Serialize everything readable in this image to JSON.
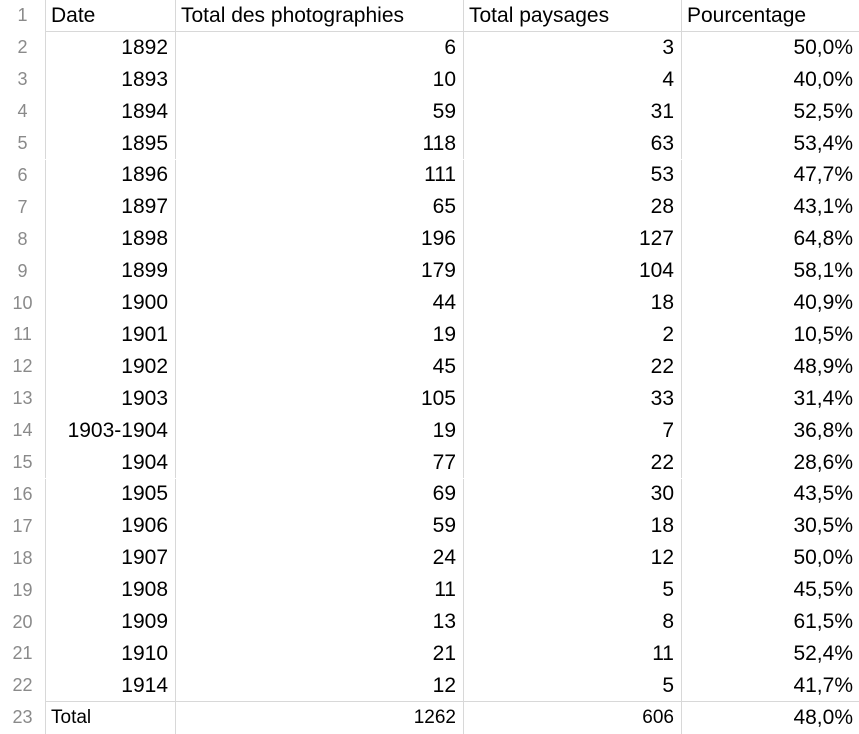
{
  "headers": {
    "date": "Date",
    "total": "Total des photographies",
    "paysages": "Total paysages",
    "pourcentage": "Pourcentage"
  },
  "rows": [
    {
      "n": "2",
      "date": "1892",
      "total": "6",
      "paysages": "3",
      "pct": "50,0%"
    },
    {
      "n": "3",
      "date": "1893",
      "total": "10",
      "paysages": "4",
      "pct": "40,0%"
    },
    {
      "n": "4",
      "date": "1894",
      "total": "59",
      "paysages": "31",
      "pct": "52,5%"
    },
    {
      "n": "5",
      "date": "1895",
      "total": "118",
      "paysages": "63",
      "pct": "53,4%"
    },
    {
      "n": "6",
      "date": "1896",
      "total": "111",
      "paysages": "53",
      "pct": "47,7%"
    },
    {
      "n": "7",
      "date": "1897",
      "total": "65",
      "paysages": "28",
      "pct": "43,1%"
    },
    {
      "n": "8",
      "date": "1898",
      "total": "196",
      "paysages": "127",
      "pct": "64,8%"
    },
    {
      "n": "9",
      "date": "1899",
      "total": "179",
      "paysages": "104",
      "pct": "58,1%"
    },
    {
      "n": "10",
      "date": "1900",
      "total": "44",
      "paysages": "18",
      "pct": "40,9%"
    },
    {
      "n": "11",
      "date": "1901",
      "total": "19",
      "paysages": "2",
      "pct": "10,5%"
    },
    {
      "n": "12",
      "date": "1902",
      "total": "45",
      "paysages": "22",
      "pct": "48,9%"
    },
    {
      "n": "13",
      "date": "1903",
      "total": "105",
      "paysages": "33",
      "pct": "31,4%"
    },
    {
      "n": "14",
      "date": "1903-1904",
      "total": "19",
      "paysages": "7",
      "pct": "36,8%"
    },
    {
      "n": "15",
      "date": "1904",
      "total": "77",
      "paysages": "22",
      "pct": "28,6%"
    },
    {
      "n": "16",
      "date": "1905",
      "total": "69",
      "paysages": "30",
      "pct": "43,5%"
    },
    {
      "n": "17",
      "date": "1906",
      "total": "59",
      "paysages": "18",
      "pct": "30,5%"
    },
    {
      "n": "18",
      "date": "1907",
      "total": "24",
      "paysages": "12",
      "pct": "50,0%"
    },
    {
      "n": "19",
      "date": "1908",
      "total": "11",
      "paysages": "5",
      "pct": "45,5%"
    },
    {
      "n": "20",
      "date": "1909",
      "total": "13",
      "paysages": "8",
      "pct": "61,5%"
    },
    {
      "n": "21",
      "date": "1910",
      "total": "21",
      "paysages": "11",
      "pct": "52,4%"
    },
    {
      "n": "22",
      "date": "1914",
      "total": "12",
      "paysages": "5",
      "pct": "41,7%"
    }
  ],
  "total_row": {
    "n": "23",
    "date": "Total",
    "total": "1262",
    "paysages": "606",
    "pct": "48,0%"
  },
  "header_row_number": "1"
}
